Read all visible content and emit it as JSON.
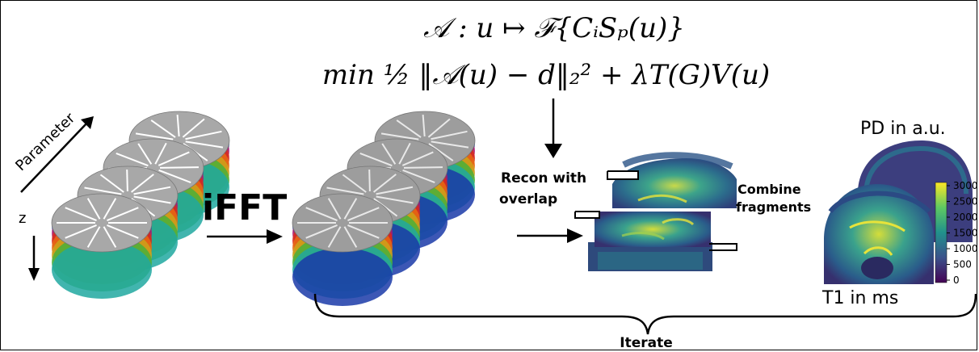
{
  "equations": {
    "operator": "𝒜 : u ↦ ℱ{CᵢSₚ(u)}",
    "minimization": "min  ½ ‖𝒜(u) − d‖₂² + λT(G)V(u)"
  },
  "labels": {
    "parameter": "Parameter",
    "z": "z",
    "ifft": "iFFT",
    "recon_line1": "Recon with",
    "recon_line2": "overlap",
    "combine_line1": "Combine",
    "combine_line2": "fragments",
    "pd": "PD in a.u.",
    "t1": "T1 in ms",
    "iterate": "Iterate"
  },
  "colorbar": {
    "ticks": [
      "3000",
      "2500",
      "2000",
      "1500",
      "1000",
      "500",
      "0"
    ],
    "colors": [
      "#fde725",
      "#5ec962",
      "#21918c",
      "#3b528b",
      "#440154"
    ]
  },
  "layer_colors": [
    "#1a3aa8",
    "#b01a6c",
    "#d82a1a",
    "#e86a12",
    "#cda21a",
    "#49b03a",
    "#20a8a0"
  ]
}
